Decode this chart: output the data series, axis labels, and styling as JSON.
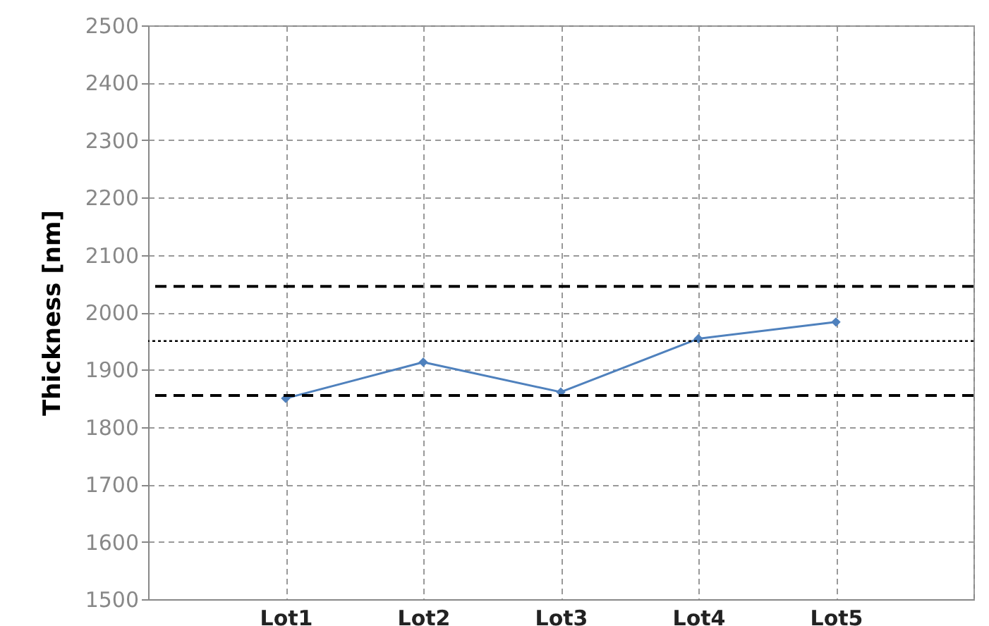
{
  "chart_data": {
    "type": "line",
    "ylabel": "Thickness [nm]",
    "categories": [
      null,
      "Lot1",
      "Lot2",
      "Lot3",
      "Lot4",
      "Lot5",
      null
    ],
    "series": [
      {
        "color": "#4f81bd",
        "values": [
          null,
          1850,
          1913,
          1861,
          1954,
          1983,
          null
        ]
      }
    ],
    "ylim": [
      1500,
      2500
    ],
    "yticks": [
      1500,
      1600,
      1700,
      1800,
      1900,
      2000,
      2100,
      2200,
      2300,
      2400,
      2500
    ],
    "ref_lines": [
      {
        "axis": "y",
        "value": 2045,
        "color": "#000000",
        "line_style": "dashed"
      },
      {
        "axis": "y",
        "value": 1950,
        "color": "#000000",
        "line_style": "dotted"
      },
      {
        "axis": "y",
        "value": 1855,
        "color": "#000000",
        "line_style": "dashed"
      }
    ],
    "grid": true,
    "marker": "diamond",
    "line_style": "solid"
  }
}
